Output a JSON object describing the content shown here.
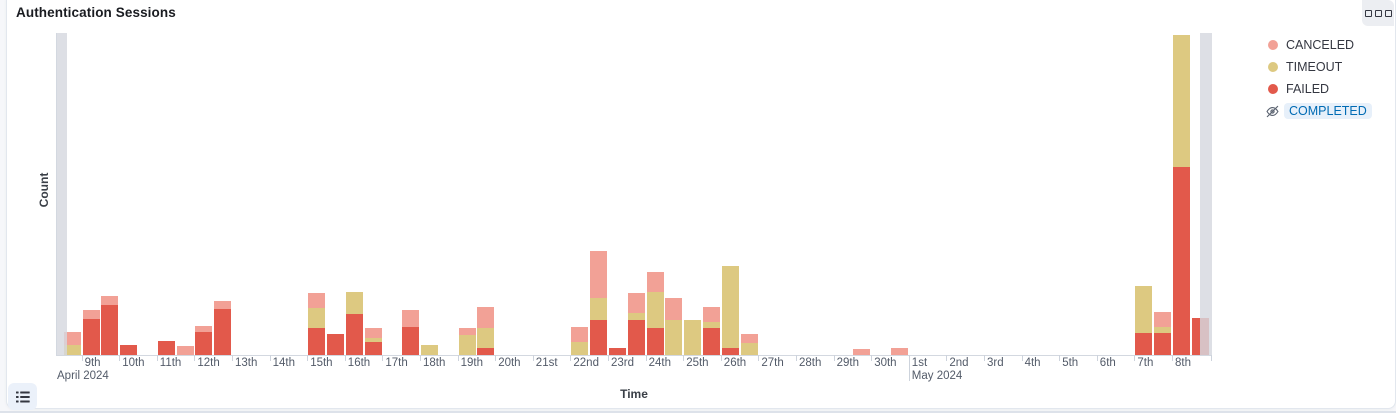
{
  "header": {
    "title": "Authentication Sessions"
  },
  "panel_menu": {
    "icon": "boxes-horizontal-icon"
  },
  "legend": {
    "actions_icon": "boxes-vertical-icon",
    "hidden_item_icon": "eye-slash-icon",
    "items": [
      {
        "label": "CANCELED",
        "color": "#F2A196",
        "visible": true
      },
      {
        "label": "TIMEOUT",
        "color": "#DDC981",
        "visible": true
      },
      {
        "label": "FAILED",
        "color": "#E2594B",
        "visible": true
      },
      {
        "label": "COMPLETED",
        "color": null,
        "visible": false
      }
    ]
  },
  "axes": {
    "y_title": "Count",
    "x_title": "Time",
    "y_tick_labels_visible": false,
    "x_tick_labels": [
      "9th",
      "10th",
      "11th",
      "12th",
      "13th",
      "14th",
      "15th",
      "16th",
      "17th",
      "18th",
      "19th",
      "20th",
      "21st",
      "22nd",
      "23rd",
      "24th",
      "25th",
      "26th",
      "27th",
      "28th",
      "29th",
      "30th",
      "1st",
      "2nd",
      "3rd",
      "4th",
      "5th",
      "6th",
      "7th",
      "8th"
    ],
    "x_month_labels": [
      {
        "label": "April 2024",
        "at_plot_start": true,
        "day_offset": 0
      },
      {
        "label": "May 2024",
        "at_plot_start": false,
        "day_offset": 23
      }
    ]
  },
  "chart_data": {
    "type": "bar",
    "stacked": true,
    "interval": "12h",
    "x_range": "2024-04-08 to 2024-05-09",
    "series_order_bottom_to_top": [
      "FAILED",
      "TIMEOUT",
      "CANCELED"
    ],
    "hidden_series": [
      "COMPLETED"
    ],
    "y_unit": "count (relative; y-axis tick labels not shown in chart)",
    "legend_position": "right",
    "grid": false,
    "out_of_range_shading": {
      "left": true,
      "right": true,
      "color": "#D5D8DF"
    },
    "buckets": [
      {
        "slot": 1,
        "time": "Apr 8 12:00",
        "FAILED": 0,
        "TIMEOUT": 10,
        "CANCELED": 13
      },
      {
        "slot": 2,
        "time": "Apr 9 00:00",
        "FAILED": 36,
        "TIMEOUT": 0,
        "CANCELED": 9
      },
      {
        "slot": 3,
        "time": "Apr 9 12:00",
        "FAILED": 50,
        "TIMEOUT": 0,
        "CANCELED": 9
      },
      {
        "slot": 4,
        "time": "Apr 10 00:00",
        "FAILED": 10,
        "TIMEOUT": 0,
        "CANCELED": 0
      },
      {
        "slot": 6,
        "time": "Apr 11 00:00",
        "FAILED": 14,
        "TIMEOUT": 0,
        "CANCELED": 0
      },
      {
        "slot": 7,
        "time": "Apr 11 12:00",
        "FAILED": 0,
        "TIMEOUT": 0,
        "CANCELED": 9
      },
      {
        "slot": 8,
        "time": "Apr 12 00:00",
        "FAILED": 23,
        "TIMEOUT": 0,
        "CANCELED": 6
      },
      {
        "slot": 9,
        "time": "Apr 12 12:00",
        "FAILED": 46,
        "TIMEOUT": 0,
        "CANCELED": 8
      },
      {
        "slot": 14,
        "time": "Apr 15 00:00",
        "FAILED": 27,
        "TIMEOUT": 20,
        "CANCELED": 15
      },
      {
        "slot": 15,
        "time": "Apr 15 12:00",
        "FAILED": 21,
        "TIMEOUT": 0,
        "CANCELED": 0
      },
      {
        "slot": 16,
        "time": "Apr 16 00:00",
        "FAILED": 41,
        "TIMEOUT": 22,
        "CANCELED": 0
      },
      {
        "slot": 17,
        "time": "Apr 16 12:00",
        "FAILED": 13,
        "TIMEOUT": 4,
        "CANCELED": 10
      },
      {
        "slot": 19,
        "time": "Apr 17 12:00",
        "FAILED": 28,
        "TIMEOUT": 0,
        "CANCELED": 17
      },
      {
        "slot": 20,
        "time": "Apr 18 00:00",
        "FAILED": 0,
        "TIMEOUT": 10,
        "CANCELED": 0
      },
      {
        "slot": 22,
        "time": "Apr 19 00:00",
        "FAILED": 0,
        "TIMEOUT": 20,
        "CANCELED": 7
      },
      {
        "slot": 23,
        "time": "Apr 19 12:00",
        "FAILED": 7,
        "TIMEOUT": 20,
        "CANCELED": 21
      },
      {
        "slot": 28,
        "time": "Apr 22 00:00",
        "FAILED": 0,
        "TIMEOUT": 13,
        "CANCELED": 15
      },
      {
        "slot": 29,
        "time": "Apr 22 12:00",
        "FAILED": 35,
        "TIMEOUT": 22,
        "CANCELED": 47
      },
      {
        "slot": 30,
        "time": "Apr 23 00:00",
        "FAILED": 7,
        "TIMEOUT": 0,
        "CANCELED": 0
      },
      {
        "slot": 31,
        "time": "Apr 23 12:00",
        "FAILED": 35,
        "TIMEOUT": 7,
        "CANCELED": 20
      },
      {
        "slot": 32,
        "time": "Apr 24 00:00",
        "FAILED": 27,
        "TIMEOUT": 36,
        "CANCELED": 20
      },
      {
        "slot": 33,
        "time": "Apr 24 12:00",
        "FAILED": 0,
        "TIMEOUT": 35,
        "CANCELED": 22
      },
      {
        "slot": 34,
        "time": "Apr 25 00:00",
        "FAILED": 0,
        "TIMEOUT": 35,
        "CANCELED": 0
      },
      {
        "slot": 35,
        "time": "Apr 25 12:00",
        "FAILED": 27,
        "TIMEOUT": 6,
        "CANCELED": 15
      },
      {
        "slot": 36,
        "time": "Apr 26 00:00",
        "FAILED": 7,
        "TIMEOUT": 82,
        "CANCELED": 0
      },
      {
        "slot": 37,
        "time": "Apr 26 12:00",
        "FAILED": 0,
        "TIMEOUT": 12,
        "CANCELED": 9
      },
      {
        "slot": 43,
        "time": "Apr 29 12:00",
        "FAILED": 0,
        "TIMEOUT": 0,
        "CANCELED": 6
      },
      {
        "slot": 45,
        "time": "Apr 30 12:00",
        "FAILED": 0,
        "TIMEOUT": 0,
        "CANCELED": 7
      },
      {
        "slot": 58,
        "time": "May 7 00:00",
        "FAILED": 22,
        "TIMEOUT": 47,
        "CANCELED": 0
      },
      {
        "slot": 59,
        "time": "May 7 12:00",
        "FAILED": 22,
        "TIMEOUT": 6,
        "CANCELED": 15
      },
      {
        "slot": 60,
        "time": "May 8 00:00",
        "FAILED": 188,
        "TIMEOUT": 132,
        "CANCELED": 0
      },
      {
        "slot": 61,
        "time": "May 8 12:00",
        "FAILED": 37,
        "TIMEOUT": 0,
        "CANCELED": 0,
        "partial": true
      }
    ]
  },
  "footer": {
    "legend_toggle_icon": "list-icon"
  },
  "colors": {
    "canceled": "#F2A196",
    "timeout": "#DDC981",
    "failed": "#E2594B",
    "out_of_range": "#D5D8DF",
    "hidden_legend_text": "#006bb4",
    "hidden_legend_bg": "#e7f0fa"
  }
}
